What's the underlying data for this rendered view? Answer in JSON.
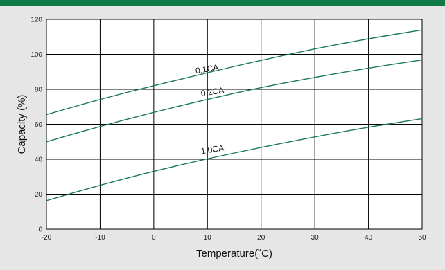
{
  "colors": {
    "header_bar": "#0e7a45",
    "background": "#e6e6e6",
    "plot_background": "#ffffff",
    "grid": "#000000",
    "series_line": "#1a7a55"
  },
  "chart_data": {
    "type": "line",
    "title": "",
    "xlabel": "Temperature(˚C)",
    "ylabel": "Capacity (%)",
    "xlim": [
      -20,
      50
    ],
    "ylim": [
      0,
      120
    ],
    "x_ticks": [
      -20,
      -10,
      0,
      10,
      20,
      30,
      40,
      50
    ],
    "y_ticks": [
      0,
      20,
      40,
      60,
      80,
      100,
      120
    ],
    "grid": true,
    "series": [
      {
        "name": "0.1CA",
        "x": [
          -20,
          -10,
          0,
          10,
          20,
          30,
          40,
          50
        ],
        "y": [
          65.5,
          74.3,
          82.1,
          89.5,
          96.6,
          103.2,
          109.0,
          114.0
        ]
      },
      {
        "name": "0.2CA",
        "x": [
          -20,
          -10,
          0,
          10,
          20,
          30,
          40,
          50
        ],
        "y": [
          50.0,
          58.8,
          66.9,
          74.3,
          81.1,
          86.9,
          92.2,
          96.8
        ]
      },
      {
        "name": "1.0CA",
        "x": [
          -20,
          -10,
          0,
          10,
          20,
          30,
          40,
          50
        ],
        "y": [
          16.3,
          25.2,
          33.2,
          40.3,
          46.8,
          52.8,
          58.4,
          63.2
        ]
      }
    ],
    "series_labels": [
      {
        "text": "0.1CA",
        "x": 10,
        "y": 90
      },
      {
        "text": "0.2CA",
        "x": 11,
        "y": 77
      },
      {
        "text": "1.0CA",
        "x": 11,
        "y": 44
      }
    ]
  }
}
